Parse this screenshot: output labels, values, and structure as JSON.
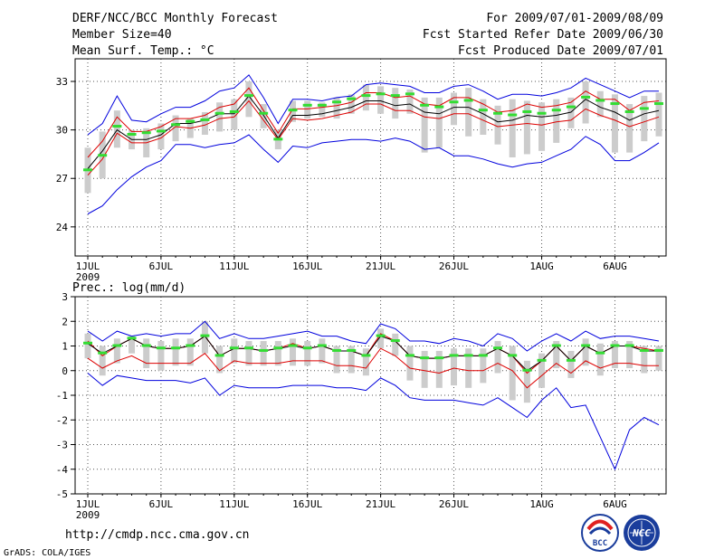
{
  "header": {
    "title": "DERF/NCC/BCC Monthly Forecast",
    "member_size": "Member Size=40",
    "period": "For 2009/07/01-2009/08/09",
    "started_refer": "Fcst Started Refer Date 2009/06/30",
    "produced": "Fcst Produced Date 2009/07/01"
  },
  "footer": {
    "url": "http://cmdp.ncc.cma.gov.cn",
    "grads": "GrADS: COLA/IGES",
    "logo_bcc": "BCC",
    "logo_ncc": "NCC"
  },
  "colors": {
    "ens_range": "#0000dd",
    "ens_sd": "#dd0000",
    "ens_mean": "#000000",
    "median": "#33dd33",
    "box": "#cccccc",
    "grid": "#555555"
  },
  "chart_data": [
    {
      "type": "line",
      "title": "Mean Surf. Temp.: °C",
      "xlabel": "",
      "ylabel": "°C",
      "x_tick_labels": [
        "1JUL",
        "6JUL",
        "11JUL",
        "16JUL",
        "21JUL",
        "26JUL",
        "1AUG",
        "6AUG"
      ],
      "x_tick_days": [
        1,
        6,
        11,
        16,
        21,
        26,
        32,
        37
      ],
      "x_year_label": "2009",
      "xlim": [
        1,
        40
      ],
      "ylim": [
        22.2,
        34.4
      ],
      "y_ticks": [
        24,
        27,
        30,
        33
      ],
      "y_tick_labels": [
        "24",
        "27",
        "30",
        "33"
      ],
      "series": [
        {
          "name": "ensemble max",
          "values": [
            29.7,
            30.4,
            32.1,
            30.6,
            30.5,
            31.0,
            31.4,
            31.4,
            31.8,
            32.4,
            32.6,
            33.4,
            32.0,
            30.4,
            31.9,
            31.9,
            31.8,
            32.0,
            32.1,
            32.8,
            32.9,
            32.8,
            32.7,
            32.3,
            32.3,
            32.7,
            32.8,
            32.4,
            31.9,
            32.2,
            32.2,
            32.1,
            32.3,
            32.6,
            33.2,
            32.8,
            32.4,
            32.0,
            32.4,
            32.4
          ]
        },
        {
          "name": "mean + sd",
          "values": [
            28.3,
            29.3,
            30.8,
            29.9,
            29.9,
            30.2,
            30.7,
            30.7,
            30.9,
            31.4,
            31.6,
            32.6,
            31.2,
            29.8,
            31.3,
            31.3,
            31.4,
            31.5,
            31.7,
            32.3,
            32.3,
            32.0,
            32.1,
            31.6,
            31.5,
            32.0,
            32.0,
            31.6,
            31.1,
            31.2,
            31.6,
            31.4,
            31.5,
            31.7,
            32.4,
            31.9,
            31.9,
            31.2,
            31.7,
            31.8
          ]
        },
        {
          "name": "ensemble mean",
          "values": [
            27.6,
            28.7,
            30.0,
            29.4,
            29.4,
            29.7,
            30.4,
            30.4,
            30.6,
            31.0,
            31.0,
            32.1,
            30.9,
            29.5,
            30.9,
            30.9,
            31.0,
            31.2,
            31.4,
            31.8,
            31.8,
            31.5,
            31.6,
            31.1,
            31.0,
            31.4,
            31.4,
            31.0,
            30.5,
            30.6,
            30.9,
            30.8,
            30.9,
            31.1,
            31.9,
            31.4,
            31.1,
            30.6,
            31.0,
            31.2
          ]
        },
        {
          "name": "mean - sd",
          "values": [
            27.2,
            28.2,
            29.8,
            29.2,
            29.2,
            29.5,
            30.2,
            30.1,
            30.3,
            30.7,
            30.8,
            31.8,
            30.6,
            29.4,
            30.7,
            30.6,
            30.7,
            30.9,
            31.1,
            31.6,
            31.6,
            31.2,
            31.2,
            30.8,
            30.7,
            31.0,
            31.0,
            30.6,
            30.2,
            30.3,
            30.4,
            30.3,
            30.5,
            30.6,
            31.3,
            30.9,
            30.6,
            30.2,
            30.5,
            30.8
          ]
        },
        {
          "name": "ensemble min",
          "values": [
            24.8,
            25.3,
            26.3,
            27.1,
            27.7,
            28.1,
            29.1,
            29.1,
            28.9,
            29.1,
            29.2,
            29.7,
            28.8,
            28.0,
            29.0,
            28.9,
            29.2,
            29.3,
            29.4,
            29.4,
            29.3,
            29.5,
            29.3,
            28.8,
            28.9,
            28.4,
            28.4,
            28.2,
            27.9,
            27.7,
            27.9,
            28.0,
            28.4,
            28.8,
            29.6,
            29.1,
            28.1,
            28.1,
            28.6,
            29.2
          ]
        }
      ],
      "box_low": [
        26.1,
        27.0,
        28.9,
        28.8,
        28.3,
        28.8,
        29.3,
        29.5,
        29.7,
        29.9,
        30.0,
        30.8,
        30.1,
        28.8,
        30.5,
        30.7,
        30.8,
        30.7,
        31.0,
        31.2,
        31.0,
        30.7,
        31.0,
        28.6,
        28.9,
        30.3,
        29.6,
        29.7,
        29.1,
        28.3,
        28.5,
        28.7,
        29.2,
        30.1,
        30.4,
        30.8,
        28.6,
        28.6,
        29.3,
        29.6
      ],
      "box_high": [
        28.9,
        29.9,
        31.2,
        30.0,
        30.1,
        30.4,
        30.9,
        30.7,
        31.1,
        31.7,
        31.9,
        33.0,
        31.6,
        30.0,
        31.8,
        31.8,
        31.7,
        32.0,
        32.2,
        32.8,
        32.7,
        32.6,
        32.5,
        32.0,
        32.0,
        32.3,
        32.6,
        31.9,
        31.5,
        31.9,
        31.8,
        31.7,
        31.9,
        32.0,
        33.0,
        32.4,
        32.2,
        31.6,
        32.1,
        32.3
      ],
      "medians": [
        27.5,
        28.4,
        30.2,
        29.7,
        29.8,
        29.9,
        30.3,
        30.5,
        30.6,
        31.0,
        31.1,
        32.1,
        31.0,
        29.4,
        31.2,
        31.5,
        31.5,
        31.7,
        31.9,
        32.1,
        32.2,
        32.1,
        32.2,
        31.5,
        31.4,
        31.7,
        31.8,
        31.2,
        31.0,
        30.9,
        31.1,
        31.0,
        31.2,
        31.4,
        32.0,
        31.8,
        31.6,
        31.1,
        31.3,
        31.6
      ]
    },
    {
      "type": "line",
      "title": "Prec.: log(mm/d)",
      "xlabel": "",
      "ylabel": "log(mm/d)",
      "x_tick_labels": [
        "1JUL",
        "6JUL",
        "11JUL",
        "16JUL",
        "21JUL",
        "26JUL",
        "1AUG",
        "6AUG"
      ],
      "x_tick_days": [
        1,
        6,
        11,
        16,
        21,
        26,
        32,
        37
      ],
      "x_year_label": "2009",
      "xlim": [
        1,
        40
      ],
      "ylim": [
        -5,
        3
      ],
      "y_ticks": [
        -5,
        -4,
        -3,
        -2,
        -1,
        0,
        1,
        2,
        3
      ],
      "y_tick_labels": [
        "-5",
        "-4",
        "-3",
        "-2",
        "-1",
        "0",
        "1",
        "2",
        "3"
      ],
      "series": [
        {
          "name": "ensemble max",
          "values": [
            1.6,
            1.2,
            1.6,
            1.4,
            1.5,
            1.4,
            1.5,
            1.5,
            2.0,
            1.3,
            1.5,
            1.3,
            1.3,
            1.4,
            1.5,
            1.6,
            1.4,
            1.4,
            1.2,
            1.1,
            1.9,
            1.7,
            1.2,
            1.2,
            1.1,
            1.3,
            1.2,
            1.0,
            1.5,
            1.3,
            0.8,
            1.2,
            1.5,
            1.2,
            1.6,
            1.3,
            1.4,
            1.4,
            1.3,
            1.2
          ]
        },
        {
          "name": "mean + sd",
          "values": [
            1.2,
            0.6,
            1.0,
            1.3,
            1.0,
            0.9,
            0.9,
            1.0,
            1.4,
            0.6,
            0.9,
            0.9,
            0.8,
            0.9,
            1.1,
            0.9,
            1.0,
            0.8,
            0.8,
            0.6,
            1.5,
            1.2,
            0.6,
            0.5,
            0.5,
            0.6,
            0.6,
            0.6,
            0.9,
            0.6,
            -0.1,
            0.4,
            1.0,
            0.4,
            1.0,
            0.7,
            1.0,
            1.0,
            0.9,
            0.8
          ]
        },
        {
          "name": "ensemble mean",
          "values": [
            1.1,
            0.7,
            1.0,
            1.3,
            1.0,
            0.9,
            0.9,
            1.0,
            1.4,
            0.6,
            0.9,
            0.9,
            0.8,
            0.9,
            1.0,
            0.9,
            1.0,
            0.8,
            0.8,
            0.6,
            1.4,
            1.2,
            0.6,
            0.5,
            0.5,
            0.6,
            0.6,
            0.6,
            0.9,
            0.6,
            0.0,
            0.4,
            1.0,
            0.4,
            1.0,
            0.7,
            1.0,
            1.0,
            0.8,
            0.8
          ]
        },
        {
          "name": "mean - sd",
          "values": [
            0.5,
            0.1,
            0.4,
            0.6,
            0.3,
            0.3,
            0.3,
            0.3,
            0.7,
            0.0,
            0.4,
            0.3,
            0.3,
            0.3,
            0.4,
            0.4,
            0.4,
            0.2,
            0.2,
            0.1,
            0.9,
            0.6,
            0.1,
            0.0,
            -0.1,
            0.1,
            0.0,
            0.0,
            0.3,
            0.0,
            -0.7,
            -0.2,
            0.3,
            -0.1,
            0.4,
            0.1,
            0.3,
            0.3,
            0.2,
            0.2
          ]
        },
        {
          "name": "ensemble min",
          "values": [
            -0.1,
            -0.6,
            -0.2,
            -0.3,
            -0.4,
            -0.4,
            -0.4,
            -0.5,
            -0.3,
            -1.0,
            -0.6,
            -0.7,
            -0.7,
            -0.7,
            -0.6,
            -0.6,
            -0.6,
            -0.7,
            -0.7,
            -0.8,
            -0.3,
            -0.6,
            -1.1,
            -1.2,
            -1.2,
            -1.2,
            -1.3,
            -1.4,
            -1.1,
            -1.5,
            -1.9,
            -1.2,
            -0.7,
            -1.5,
            -1.4,
            -2.7,
            -4.0,
            -2.4,
            -1.9,
            -2.2
          ]
        }
      ],
      "box_low": [
        0.5,
        -0.2,
        0.3,
        0.7,
        0.1,
        0.0,
        0.2,
        0.2,
        0.7,
        -0.1,
        0.3,
        0.2,
        0.2,
        0.2,
        0.2,
        0.2,
        0.3,
        -0.1,
        -0.1,
        -0.2,
        0.9,
        0.6,
        -0.4,
        -0.7,
        -0.7,
        -0.6,
        -0.7,
        -0.5,
        -0.1,
        -1.2,
        -1.3,
        -0.7,
        0.1,
        -0.3,
        0.2,
        -0.2,
        0.1,
        0.1,
        -0.1,
        0.0
      ],
      "box_high": [
        1.5,
        1.0,
        1.3,
        1.4,
        1.3,
        1.2,
        1.3,
        1.3,
        2.0,
        1.0,
        1.3,
        1.2,
        1.2,
        1.2,
        1.3,
        1.2,
        1.3,
        1.0,
        1.0,
        0.9,
        1.7,
        1.5,
        1.0,
        0.8,
        0.8,
        0.9,
        0.9,
        0.9,
        1.2,
        1.0,
        0.4,
        0.7,
        1.2,
        0.8,
        1.3,
        1.1,
        1.2,
        1.2,
        1.0,
        1.0
      ]
    }
  ]
}
